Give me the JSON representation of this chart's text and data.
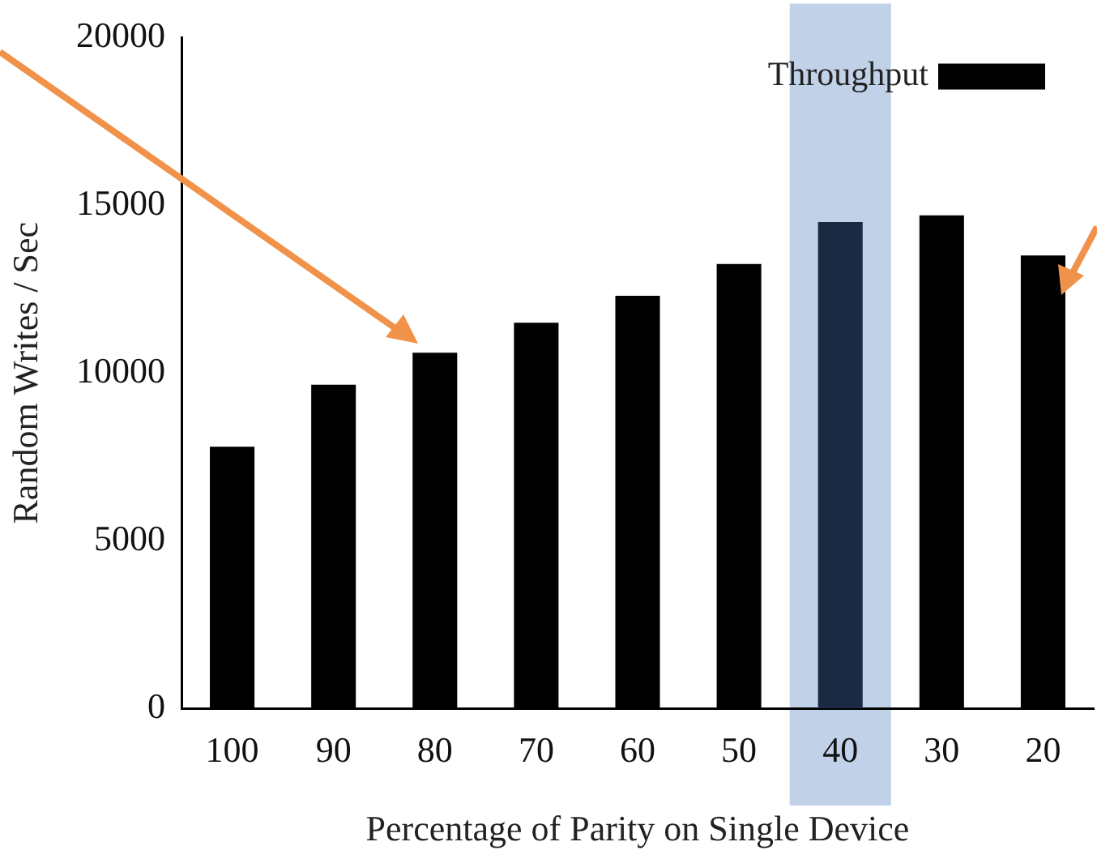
{
  "chart_data": {
    "type": "bar",
    "xlabel": "Percentage of Parity on Single Device",
    "ylabel": "Random Writes / Sec",
    "categories": [
      "100",
      "90",
      "80",
      "70",
      "60",
      "50",
      "40",
      "30",
      "20"
    ],
    "series": [
      {
        "name": "Throughput",
        "color": "#000000",
        "colors": [
          "#000000",
          "#000000",
          "#000000",
          "#000000",
          "#000000",
          "#000000",
          "#1b2a42",
          "#000000",
          "#000000"
        ],
        "values": [
          7800,
          9650,
          10600,
          11500,
          12300,
          13250,
          14500,
          14700,
          13500
        ]
      }
    ],
    "ylim": [
      0,
      20000
    ],
    "yticks": [
      0,
      5000,
      10000,
      15000,
      20000
    ],
    "grid": false,
    "legend": "top right",
    "bands": [
      {
        "axis": "x",
        "from": "40",
        "to": "40",
        "color": "#c0d1e8"
      }
    ]
  }
}
